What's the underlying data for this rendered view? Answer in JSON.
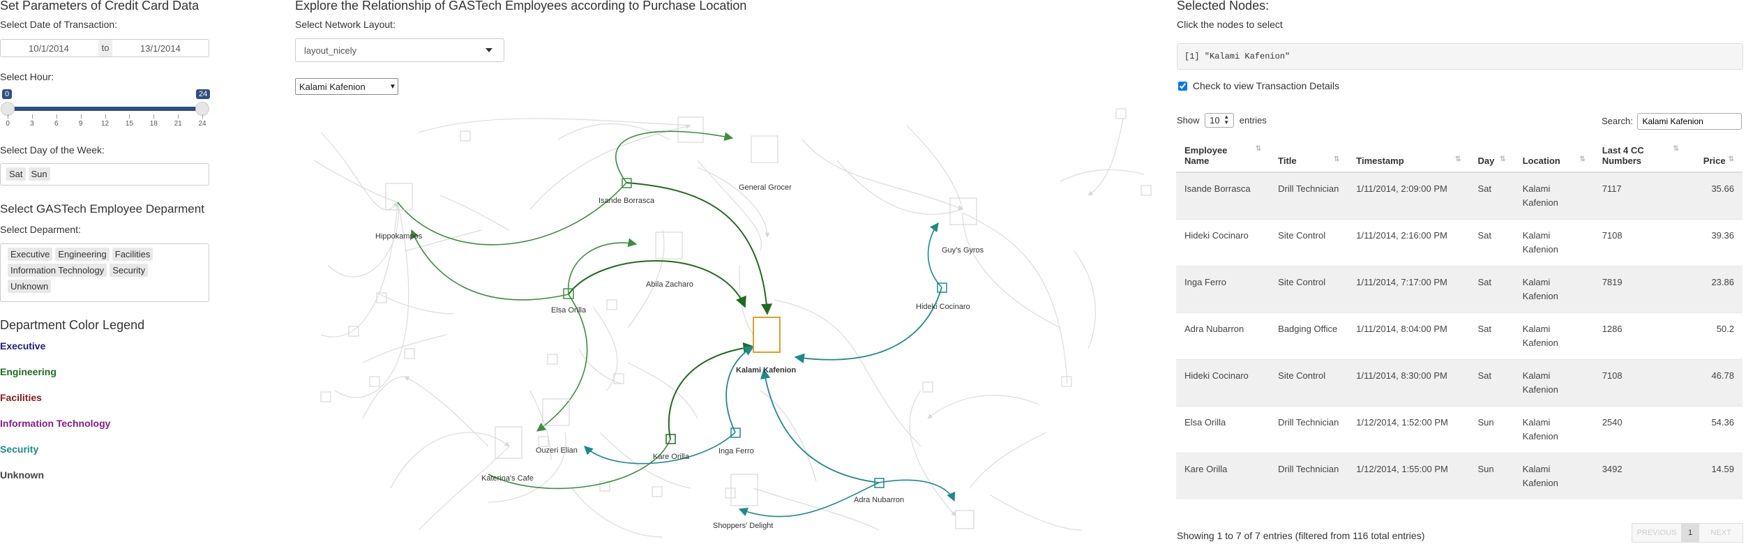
{
  "left": {
    "title": "Set Parameters of Credit Card Data",
    "date_label": "Select Date of Transaction:",
    "date_from": "10/1/2014",
    "date_sep": "to",
    "date_to": "13/1/2014",
    "hour_label": "Select Hour:",
    "hour_min": "0",
    "hour_max": "24",
    "hour_ticks": [
      "0",
      "3",
      "6",
      "9",
      "12",
      "15",
      "18",
      "21",
      "24"
    ],
    "day_label": "Select Day of the Week:",
    "days": [
      "Sat",
      "Sun"
    ],
    "dept_title": "Select GASTech Employee Deparment",
    "dept_label": "Select Deparment:",
    "departments": [
      "Executive",
      "Engineering",
      "Facilities",
      "Information Technology",
      "Security",
      "Unknown"
    ],
    "legend_title": "Department Color Legend",
    "legend": [
      {
        "label": "Executive",
        "color": "#1a1a8c"
      },
      {
        "label": "Engineering",
        "color": "#1e6b1e"
      },
      {
        "label": "Facilities",
        "color": "#8b1a1a"
      },
      {
        "label": "Information Technology",
        "color": "#8b1a8b"
      },
      {
        "label": "Security",
        "color": "#1a8b8b"
      },
      {
        "label": "Unknown",
        "color": "#444444"
      }
    ]
  },
  "middle": {
    "title": "Explore the Relationship of GASTech Employees according to Purchase Location",
    "layout_label": "Select Network Layout:",
    "layout_value": "layout_nicely",
    "node_select": "Kalami Kafenion",
    "nodes": {
      "hippokampos": "Hippokampos",
      "isande": "Isande Borrasca",
      "general_grocer": "General Grocer",
      "guys_gyros": "Guy's Gyros",
      "abila_zacharo": "Abila Zacharo",
      "elsa": "Elsa Orilla",
      "hideki": "Hideki Cocinaro",
      "kalami": "Kalami Kafenion",
      "ouzeri": "Ouzeri Elian",
      "kare": "Kare Orilla",
      "inga": "Inga Ferro",
      "katerinas": "Katerina's Cafe",
      "adra": "Adra Nubarron",
      "shoppers": "Shoppers' Delight"
    }
  },
  "right": {
    "title": "Selected Nodes:",
    "hint": "Click the nodes to select",
    "selected_output": "[1] \"Kalami Kafenion\"",
    "checkbox_label": "Check to view Transaction Details",
    "show_label": "Show",
    "show_value": "10",
    "entries_label": "entries",
    "search_label": "Search:",
    "search_value": "Kalami Kafenion",
    "columns": [
      "Employee Name",
      "Title",
      "Timestamp",
      "Day",
      "Location",
      "Last 4 CC Numbers",
      "Price"
    ],
    "rows": [
      [
        "Isande Borrasca",
        "Drill Technician",
        "1/11/2014, 2:09:00 PM",
        "Sat",
        "Kalami Kafenion",
        "7117",
        "35.66"
      ],
      [
        "Hideki Cocinaro",
        "Site Control",
        "1/11/2014, 2:16:00 PM",
        "Sat",
        "Kalami Kafenion",
        "7108",
        "39.36"
      ],
      [
        "Inga Ferro",
        "Site Control",
        "1/11/2014, 7:17:00 PM",
        "Sat",
        "Kalami Kafenion",
        "7819",
        "23.86"
      ],
      [
        "Adra Nubarron",
        "Badging Office",
        "1/11/2014, 8:04:00 PM",
        "Sat",
        "Kalami Kafenion",
        "1286",
        "50.2"
      ],
      [
        "Hideki Cocinaro",
        "Site Control",
        "1/11/2014, 8:30:00 PM",
        "Sat",
        "Kalami Kafenion",
        "7108",
        "46.78"
      ],
      [
        "Elsa Orilla",
        "Drill Technician",
        "1/12/2014, 1:52:00 PM",
        "Sun",
        "Kalami Kafenion",
        "2540",
        "54.36"
      ],
      [
        "Kare Orilla",
        "Drill Technician",
        "1/12/2014, 1:55:00 PM",
        "Sun",
        "Kalami Kafenion",
        "3492",
        "14.59"
      ]
    ],
    "info": "Showing 1 to 7 of 7 entries (filtered from 116 total entries)",
    "prev": "PREVIOUS",
    "page": "1",
    "next": "NEXT"
  }
}
